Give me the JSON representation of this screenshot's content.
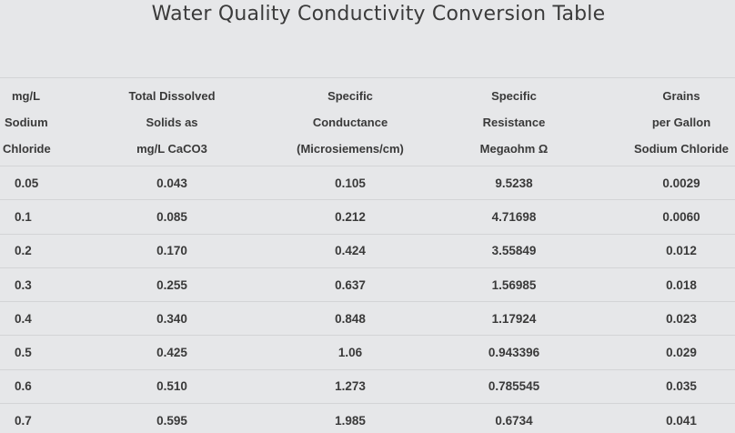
{
  "page": {
    "title": "Water Quality Conductivity Conversion Table"
  },
  "table": {
    "headers": [
      [
        "mg/L",
        "Sodium",
        "Chloride"
      ],
      [
        "Total Dissolved",
        "Solids as",
        "mg/L CaCO3"
      ],
      [
        "Specific",
        "Conductance",
        "(Microsiemens/cm)"
      ],
      [
        "Specific",
        "Resistance",
        "Megaohm Ω"
      ],
      [
        "Grains",
        "per Gallon",
        "Sodium Chloride"
      ]
    ],
    "rows": [
      [
        "0.05",
        "0.043",
        "0.105",
        "9.5238",
        "0.0029"
      ],
      [
        "0.1",
        "0.085",
        "0.212",
        "4.71698",
        "0.0060"
      ],
      [
        "0.2",
        "0.170",
        "0.424",
        "3.55849",
        "0.012"
      ],
      [
        "0.3",
        "0.255",
        "0.637",
        "1.56985",
        "0.018"
      ],
      [
        "0.4",
        "0.340",
        "0.848",
        "1.17924",
        "0.023"
      ],
      [
        "0.5",
        "0.425",
        "1.06",
        "0.943396",
        "0.029"
      ],
      [
        "0.6",
        "0.510",
        "1.273",
        "0.785545",
        "0.035"
      ],
      [
        "0.7",
        "0.595",
        "1.985",
        "0.6734",
        "0.041"
      ]
    ]
  },
  "colors": {
    "background": "#e6e7e9",
    "text": "#3a3a3a",
    "rule": "#d3d4d6"
  }
}
